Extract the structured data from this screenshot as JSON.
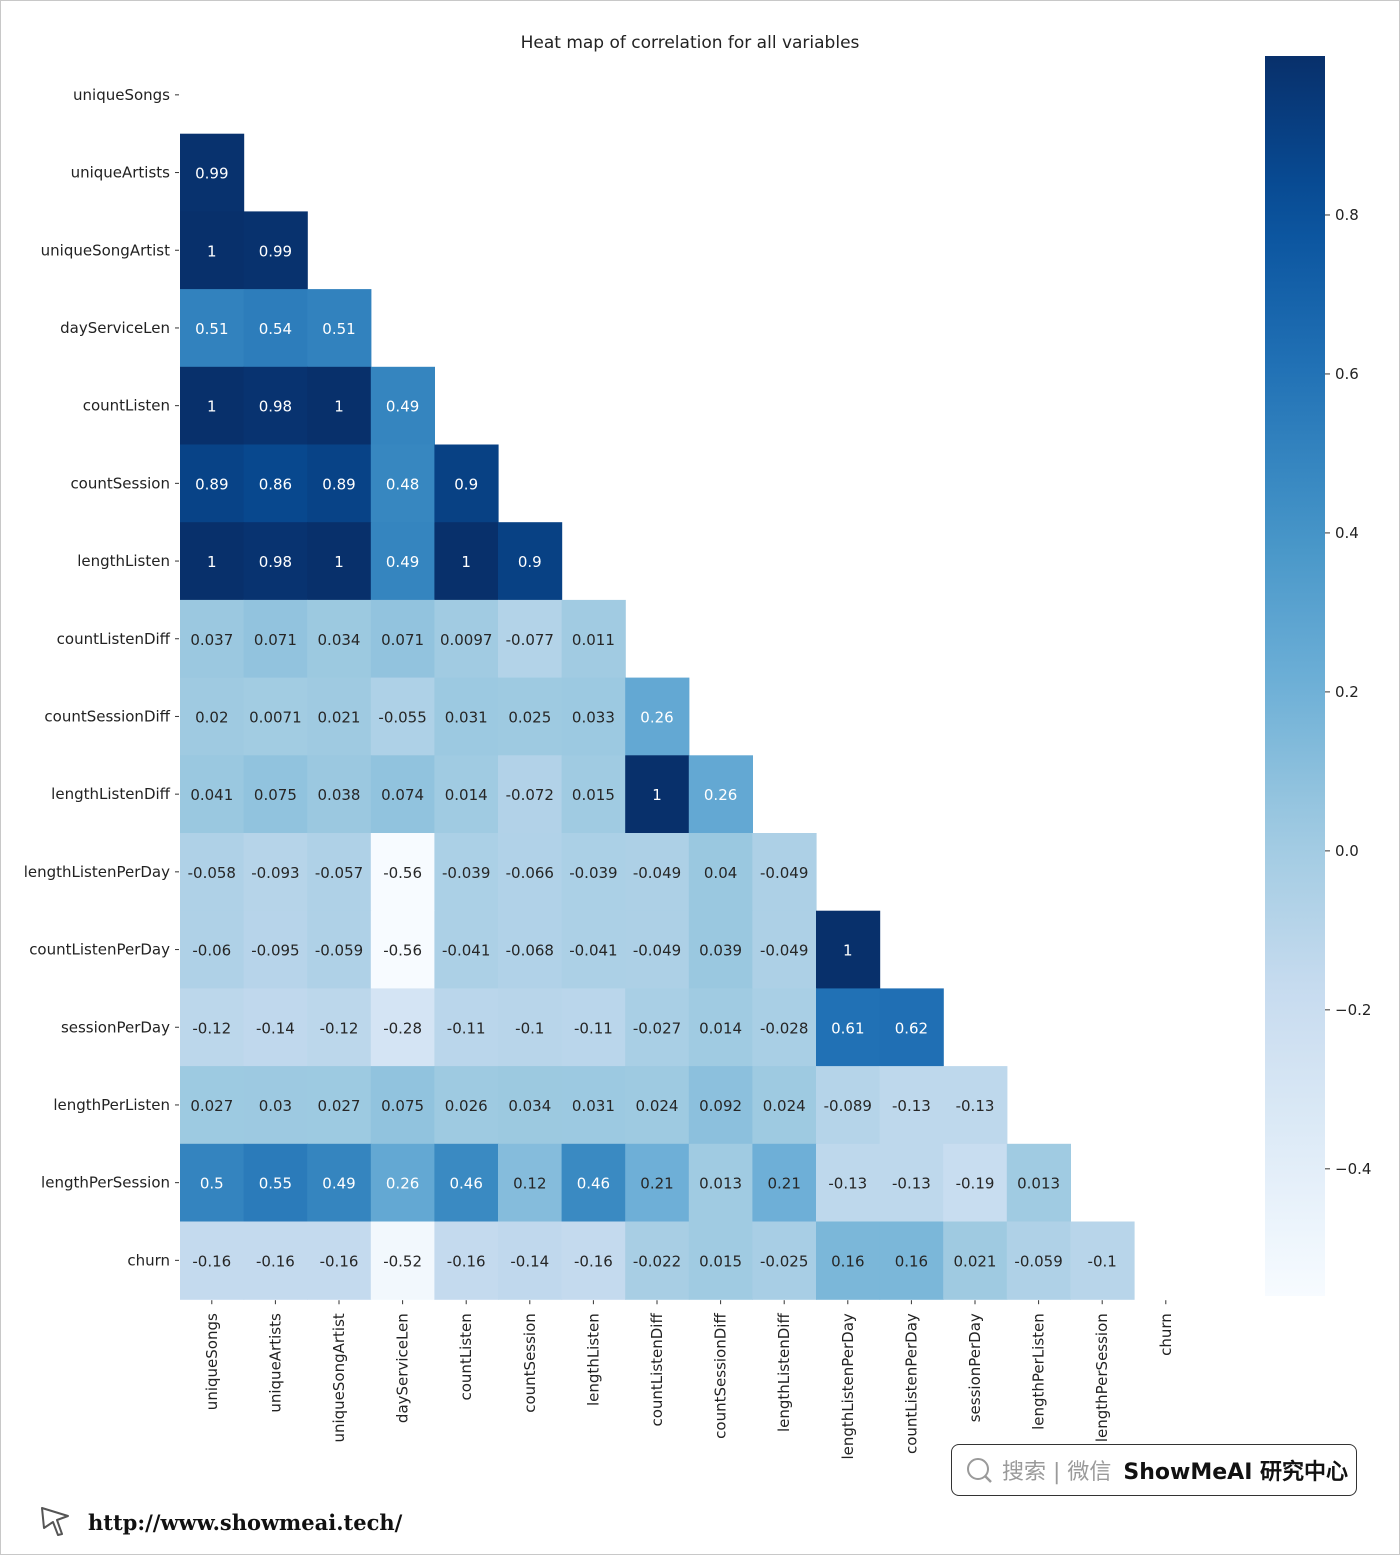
{
  "chart_data": {
    "type": "heatmap",
    "title": "Heat map of correlation for all variables",
    "variables": [
      "uniqueSongs",
      "uniqueArtists",
      "uniqueSongArtist",
      "dayServiceLen",
      "countListen",
      "countSession",
      "lengthListen",
      "countListenDiff",
      "countSessionDiff",
      "lengthListenDiff",
      "lengthListenPerDay",
      "countListenPerDay",
      "sessionPerDay",
      "lengthPerListen",
      "lengthPerSession",
      "churn"
    ],
    "matrix": [
      [],
      [
        "0.99"
      ],
      [
        "1",
        "0.99"
      ],
      [
        "0.51",
        "0.54",
        "0.51"
      ],
      [
        "1",
        "0.98",
        "1",
        "0.49"
      ],
      [
        "0.89",
        "0.86",
        "0.89",
        "0.48",
        "0.9"
      ],
      [
        "1",
        "0.98",
        "1",
        "0.49",
        "1",
        "0.9"
      ],
      [
        "0.037",
        "0.071",
        "0.034",
        "0.071",
        "0.0097",
        "-0.077",
        "0.011"
      ],
      [
        "0.02",
        "0.0071",
        "0.021",
        "-0.055",
        "0.031",
        "0.025",
        "0.033",
        "0.26"
      ],
      [
        "0.041",
        "0.075",
        "0.038",
        "0.074",
        "0.014",
        "-0.072",
        "0.015",
        "1",
        "0.26"
      ],
      [
        "-0.058",
        "-0.093",
        "-0.057",
        "-0.56",
        "-0.039",
        "-0.066",
        "-0.039",
        "-0.049",
        "0.04",
        "-0.049"
      ],
      [
        "-0.06",
        "-0.095",
        "-0.059",
        "-0.56",
        "-0.041",
        "-0.068",
        "-0.041",
        "-0.049",
        "0.039",
        "-0.049",
        "1"
      ],
      [
        "-0.12",
        "-0.14",
        "-0.12",
        "-0.28",
        "-0.11",
        "-0.1",
        "-0.11",
        "-0.027",
        "0.014",
        "-0.028",
        "0.61",
        "0.62"
      ],
      [
        "0.027",
        "0.03",
        "0.027",
        "0.075",
        "0.026",
        "0.034",
        "0.031",
        "0.024",
        "0.092",
        "0.024",
        "-0.089",
        "-0.13",
        "-0.13"
      ],
      [
        "0.5",
        "0.55",
        "0.49",
        "0.26",
        "0.46",
        "0.12",
        "0.46",
        "0.21",
        "0.013",
        "0.21",
        "-0.13",
        "-0.13",
        "-0.19",
        "0.013"
      ],
      [
        "-0.16",
        "-0.16",
        "-0.16",
        "-0.52",
        "-0.16",
        "-0.14",
        "-0.16",
        "-0.022",
        "0.015",
        "-0.025",
        "0.16",
        "0.16",
        "0.021",
        "-0.059",
        "-0.1"
      ]
    ],
    "colorbar": {
      "colormap": "Blues",
      "vmin": -0.56,
      "vmax": 1,
      "ticks": [
        "0.8",
        "0.6",
        "0.4",
        "0.2",
        "0.0",
        "−0.2",
        "−0.4"
      ],
      "tick_values": [
        0.8,
        0.6,
        0.4,
        0.2,
        0.0,
        -0.2,
        -0.4
      ]
    },
    "mask": "upper-triangle-including-diagonal"
  },
  "watermark": {
    "search_hint": "搜索 | 微信",
    "brand": "ShowMeAI 研究中心",
    "url": "http://www.showmeai.tech/"
  },
  "icons": {
    "search": "search-icon",
    "cursor": "cursor-arrow-icon"
  }
}
